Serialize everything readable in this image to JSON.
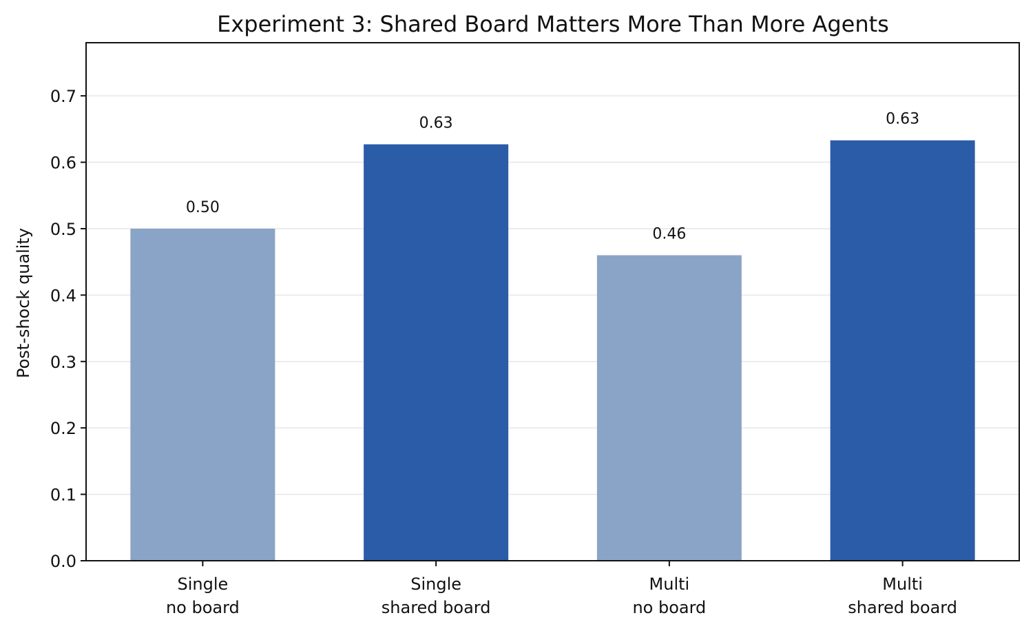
{
  "chart_data": {
    "type": "bar",
    "title": "Experiment 3: Shared Board Matters More Than More Agents",
    "xlabel": "",
    "ylabel": "Post-shock quality",
    "ylim": [
      0,
      0.78
    ],
    "yticks": [
      0.0,
      0.1,
      0.2,
      0.3,
      0.4,
      0.5,
      0.6,
      0.7
    ],
    "ytick_labels": [
      "0.0",
      "0.1",
      "0.2",
      "0.3",
      "0.4",
      "0.5",
      "0.6",
      "0.7"
    ],
    "grid": "horizontal",
    "categories": [
      [
        "Single",
        "no board"
      ],
      [
        "Single",
        "shared board"
      ],
      [
        "Multi",
        "no board"
      ],
      [
        "Multi",
        "shared board"
      ]
    ],
    "values": [
      0.5,
      0.627,
      0.46,
      0.633
    ],
    "value_labels": [
      "0.50",
      "0.63",
      "0.46",
      "0.63"
    ],
    "bar_colors": [
      "#8aa4c7",
      "#2b5ca8",
      "#8aa4c7",
      "#2b5ca8"
    ]
  }
}
